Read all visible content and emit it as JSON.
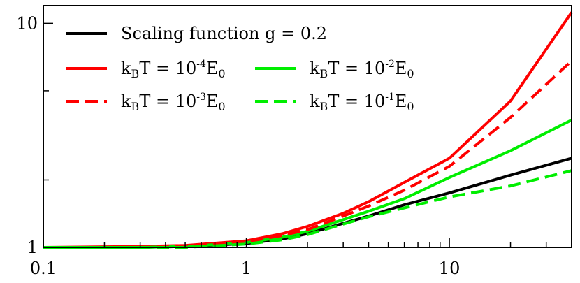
{
  "chart_data": {
    "type": "line",
    "title": "",
    "xlabel": "",
    "ylabel": "",
    "xscale": "log",
    "yscale": "log",
    "xlim": [
      0.1,
      40
    ],
    "ylim": [
      1,
      12
    ],
    "grid": false,
    "legend_position": "top-left",
    "x_tick_labels": [
      "0.1",
      "1",
      "10"
    ],
    "y_tick_labels": [
      "1",
      "10"
    ],
    "legend": [
      {
        "text": "Scaling function g = 0.2"
      },
      {
        "pre": "k",
        "sub": "B",
        "mid": "T = 10",
        "sup": "-4",
        "post": "E",
        "sub2": "0"
      },
      {
        "pre": "k",
        "sub": "B",
        "mid": "T = 10",
        "sup": "-2",
        "post": "E",
        "sub2": "0"
      },
      {
        "pre": "k",
        "sub": "B",
        "mid": "T = 10",
        "sup": "-3",
        "post": "E",
        "sub2": "0"
      },
      {
        "pre": "k",
        "sub": "B",
        "mid": "T = 10",
        "sup": "-1",
        "post": "E",
        "sub2": "0"
      }
    ],
    "series": [
      {
        "color": "#000000",
        "dash": "solid",
        "x": [
          0.1,
          0.3,
          0.5,
          1,
          1.5,
          2,
          3,
          4,
          6,
          10,
          20,
          40
        ],
        "y": [
          1,
          1,
          1.01,
          1.04,
          1.09,
          1.15,
          1.28,
          1.38,
          1.55,
          1.75,
          2.1,
          2.5
        ]
      },
      {
        "color": "#ff0000",
        "dash": "solid",
        "x": [
          0.1,
          0.3,
          0.5,
          1,
          1.5,
          2,
          3,
          4,
          6,
          10,
          20,
          40
        ],
        "y": [
          1,
          1.01,
          1.02,
          1.07,
          1.15,
          1.24,
          1.42,
          1.6,
          1.95,
          2.5,
          4.5,
          11.2
        ]
      },
      {
        "color": "#00ee00",
        "dash": "solid",
        "x": [
          0.1,
          0.3,
          0.5,
          1,
          1.5,
          2,
          3,
          4,
          6,
          10,
          20,
          40
        ],
        "y": [
          1,
          1,
          1.01,
          1.05,
          1.11,
          1.18,
          1.33,
          1.45,
          1.65,
          2.05,
          2.7,
          3.7
        ]
      },
      {
        "color": "#ff0000",
        "dash": "dashed",
        "x": [
          0.1,
          0.3,
          0.5,
          1,
          1.5,
          2,
          3,
          4,
          6,
          10,
          20,
          40
        ],
        "y": [
          1,
          1,
          1.015,
          1.06,
          1.13,
          1.2,
          1.38,
          1.53,
          1.8,
          2.3,
          3.8,
          6.8
        ]
      },
      {
        "color": "#00ee00",
        "dash": "dashed",
        "x": [
          0.1,
          0.3,
          0.5,
          1,
          1.5,
          2,
          3,
          4,
          6,
          10,
          20,
          40
        ],
        "y": [
          1,
          1,
          1,
          1.035,
          1.08,
          1.14,
          1.27,
          1.37,
          1.5,
          1.68,
          1.88,
          2.2
        ]
      }
    ]
  }
}
